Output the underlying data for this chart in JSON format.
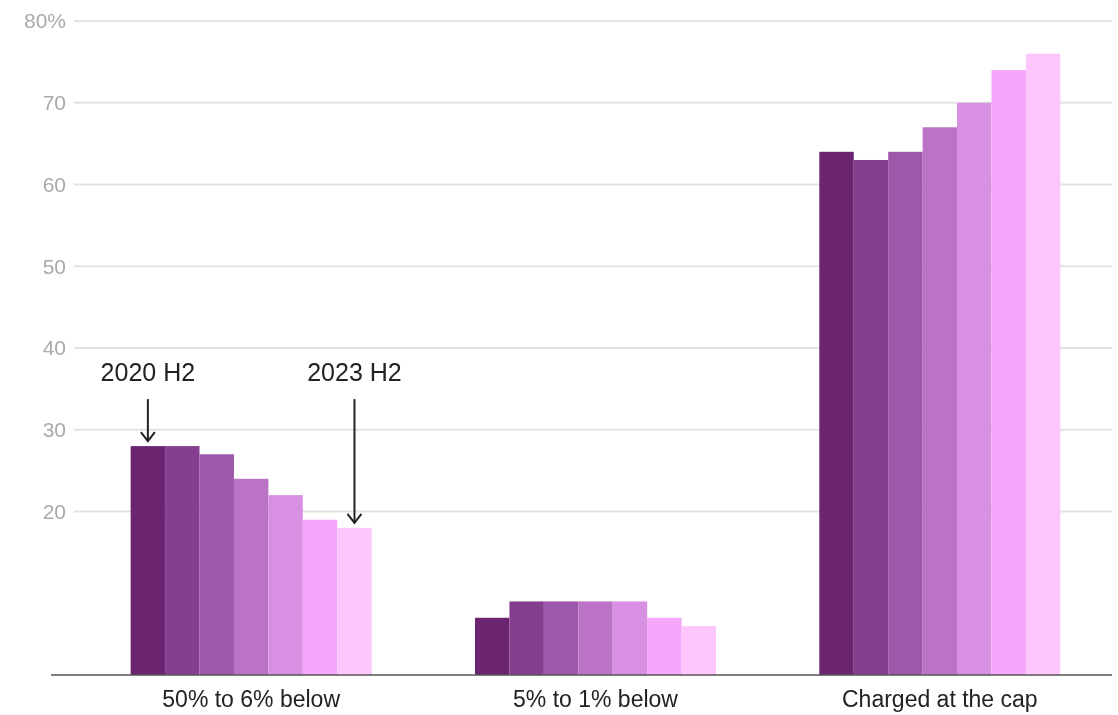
{
  "chart_data": {
    "type": "bar",
    "categories": [
      "50% to 6% below",
      "5% to 1% below",
      "Charged at the cap"
    ],
    "series": [
      {
        "color": "#6a2470",
        "values": [
          28,
          7,
          64
        ]
      },
      {
        "color": "#843f8e",
        "values": [
          28,
          9,
          63
        ]
      },
      {
        "color": "#9e58aa",
        "values": [
          27,
          9,
          64
        ]
      },
      {
        "color": "#bb74c5",
        "values": [
          24,
          9,
          67
        ]
      },
      {
        "color": "#d890e2",
        "values": [
          22,
          9,
          70
        ]
      },
      {
        "color": "#f5a8fb",
        "values": [
          19,
          7,
          74
        ]
      },
      {
        "color": "#fdc6fd",
        "values": [
          18,
          6,
          76
        ]
      }
    ],
    "ylim": [
      0,
      80
    ],
    "yticks": [
      20,
      30,
      40,
      50,
      60,
      70,
      {
        "value": 80,
        "label": "80%"
      }
    ],
    "grid": "y",
    "annotations": [
      "2020 H2",
      "2023 H2"
    ]
  }
}
